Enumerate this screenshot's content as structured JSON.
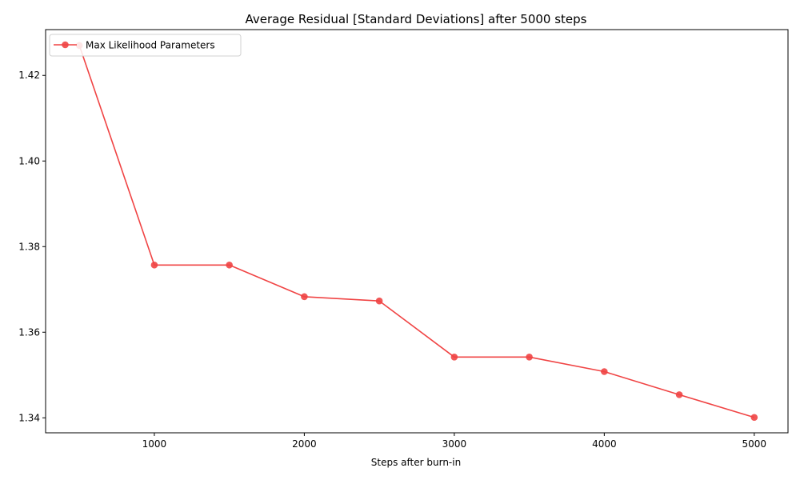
{
  "chart_data": {
    "type": "line",
    "title": "Average Residual [Standard Deviations] after 5000 steps",
    "xlabel": "Steps after burn-in",
    "ylabel": "",
    "x": [
      500,
      1000,
      1500,
      2000,
      2500,
      3000,
      3500,
      4000,
      4500,
      5000
    ],
    "series": [
      {
        "name": "Max Likelihood Parameters",
        "values": [
          1.427,
          1.3757,
          1.3757,
          1.3683,
          1.3673,
          1.3542,
          1.3542,
          1.3508,
          1.3454,
          1.3401
        ],
        "color": "#f04444",
        "marker": "circle"
      }
    ],
    "xlim": [
      275,
      5225
    ],
    "ylim": [
      1.3365,
      1.4307
    ],
    "xticks": [
      1000,
      2000,
      3000,
      4000,
      5000
    ],
    "yticks": [
      1.34,
      1.36,
      1.38,
      1.4,
      1.42
    ],
    "xtick_labels": [
      "1000",
      "2000",
      "3000",
      "4000",
      "5000"
    ],
    "ytick_labels": [
      "1.34",
      "1.36",
      "1.38",
      "1.40",
      "1.42"
    ],
    "grid": false,
    "legend_position": "top-left"
  }
}
